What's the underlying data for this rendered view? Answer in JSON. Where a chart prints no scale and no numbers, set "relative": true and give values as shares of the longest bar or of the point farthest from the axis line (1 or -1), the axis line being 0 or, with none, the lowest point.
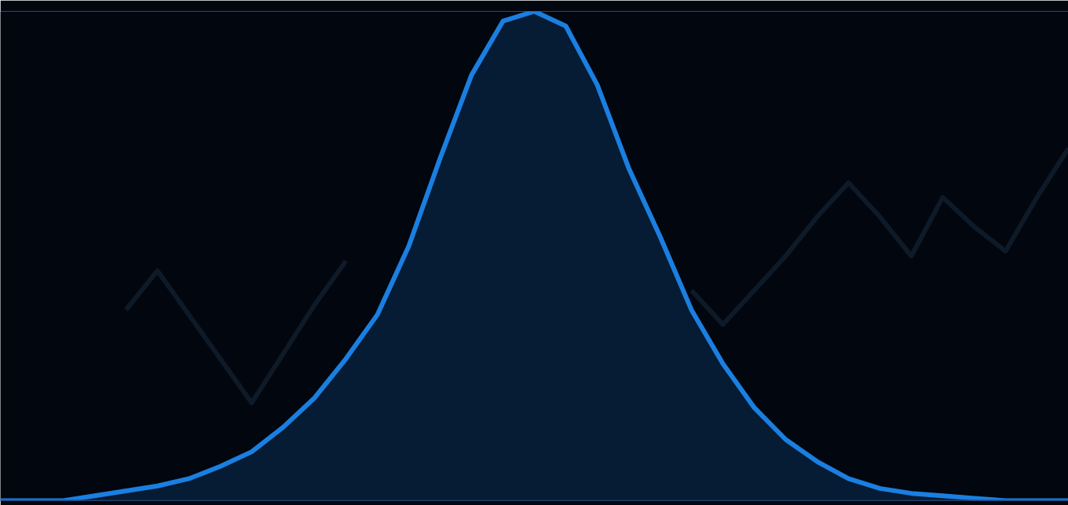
{
  "chart_data": {
    "type": "area",
    "relative": true,
    "grid": false,
    "categories": [
      null,
      null,
      null,
      null,
      null,
      null,
      null,
      null,
      null,
      null,
      null,
      null,
      null,
      null,
      null,
      null,
      null,
      null,
      null,
      null,
      null,
      null,
      null,
      null,
      null,
      null,
      null,
      null,
      null,
      null,
      null,
      null,
      null,
      null,
      null
    ],
    "series": [
      {
        "type": "line",
        "color": "#0f1a28",
        "values": [
          null,
          null,
          null,
          null,
          0.39,
          0.47,
          0.38,
          0.29,
          0.2,
          0.3,
          0.4,
          0.49,
          null,
          null,
          null,
          null,
          null,
          null,
          null,
          null,
          null,
          null,
          0.43,
          0.36,
          0.43,
          0.5,
          0.58,
          0.65,
          0.58,
          0.5,
          0.62,
          0.56,
          0.51,
          0.62,
          0.72
        ]
      },
      {
        "color": "#1a7fe0",
        "values": [
          0,
          0,
          0,
          0.01,
          0.02,
          0.03,
          0.045,
          0.07,
          0.1,
          0.15,
          0.21,
          0.29,
          0.38,
          0.52,
          0.7,
          0.87,
          0.98,
          1.0,
          0.97,
          0.85,
          0.68,
          0.54,
          0.39,
          0.28,
          0.19,
          0.125,
          0.08,
          0.045,
          0.025,
          0.015,
          0.01,
          0.005,
          0,
          0,
          0
        ]
      }
    ]
  }
}
